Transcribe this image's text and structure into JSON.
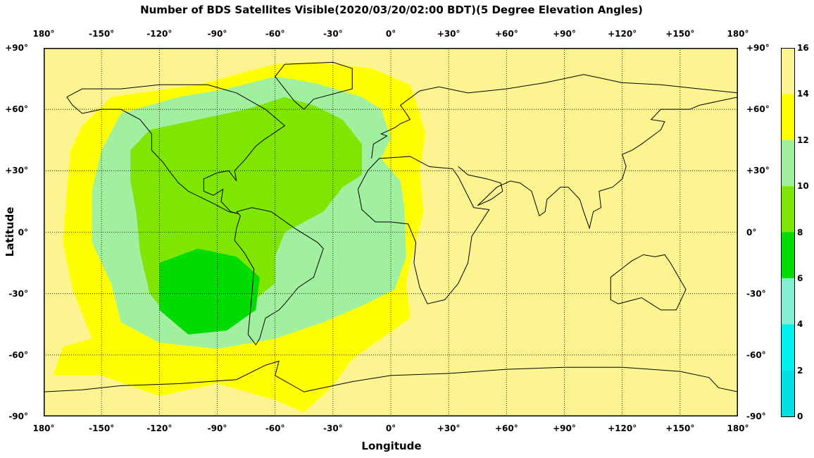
{
  "chart_data": {
    "type": "heatmap",
    "title": "Number of BDS Satellites Visible(2020/03/20/02:00 BDT)(5 Degree Elevation Angles)",
    "xlabel": "Longitude",
    "ylabel": "Latitude",
    "x_ticks": [
      "180°",
      "-150°",
      "-120°",
      "-90°",
      "-60°",
      "-30°",
      "0°",
      "+30°",
      "+60°",
      "+90°",
      "+120°",
      "+150°",
      "180°"
    ],
    "y_ticks": [
      "+90°",
      "+60°",
      "+30°",
      "0°",
      "-30°",
      "-60°",
      "-90°"
    ],
    "xlim": [
      -180,
      180
    ],
    "ylim": [
      -90,
      90
    ],
    "grid": true,
    "colorbar": {
      "ticks": [
        "16",
        "14",
        "12",
        "10",
        "8",
        "6",
        "4",
        "2",
        "0"
      ],
      "range": [
        0,
        16
      ],
      "bands": [
        {
          "min": 14,
          "max": 16,
          "color": "#fcf490"
        },
        {
          "min": 12,
          "max": 14,
          "color": "#ffff00"
        },
        {
          "min": 10,
          "max": 12,
          "color": "#a0f0a0"
        },
        {
          "min": 8,
          "max": 10,
          "color": "#7ee600"
        },
        {
          "min": 6,
          "max": 8,
          "color": "#00dc00"
        },
        {
          "min": 4,
          "max": 6,
          "color": "#80f0d0"
        },
        {
          "min": 2,
          "max": 4,
          "color": "#00f0f0"
        },
        {
          "min": 0,
          "max": 2,
          "color": "#00e0e0"
        }
      ]
    },
    "regions": [
      {
        "value": 15,
        "description": "background",
        "polygon": [
          [
            -180,
            90
          ],
          [
            180,
            90
          ],
          [
            180,
            -90
          ],
          [
            -180,
            -90
          ]
        ]
      },
      {
        "value": 13,
        "description": "outer ring",
        "polygon": [
          [
            -160,
            52
          ],
          [
            -145,
            66
          ],
          [
            -100,
            72
          ],
          [
            -60,
            82
          ],
          [
            -40,
            83
          ],
          [
            -10,
            80
          ],
          [
            10,
            72
          ],
          [
            15,
            58
          ],
          [
            18,
            48
          ],
          [
            15,
            30
          ],
          [
            17,
            10
          ],
          [
            12,
            -8
          ],
          [
            8,
            -24
          ],
          [
            10,
            -42
          ],
          [
            -5,
            -52
          ],
          [
            -20,
            -62
          ],
          [
            -30,
            -75
          ],
          [
            -45,
            -88
          ],
          [
            -60,
            -82
          ],
          [
            -90,
            -74
          ],
          [
            -120,
            -80
          ],
          [
            -150,
            -70
          ],
          [
            -175,
            -70
          ],
          [
            -170,
            -56
          ],
          [
            -155,
            -52
          ],
          [
            -165,
            -28
          ],
          [
            -170,
            -5
          ],
          [
            -168,
            20
          ],
          [
            -166,
            40
          ]
        ]
      },
      {
        "value": 11,
        "description": "10-12 zone",
        "polygon": [
          [
            -150,
            40
          ],
          [
            -140,
            58
          ],
          [
            -110,
            66
          ],
          [
            -85,
            70
          ],
          [
            -60,
            76
          ],
          [
            -40,
            73
          ],
          [
            -15,
            66
          ],
          [
            -5,
            60
          ],
          [
            0,
            46
          ],
          [
            -5,
            36
          ],
          [
            5,
            25
          ],
          [
            7,
            12
          ],
          [
            8,
            -12
          ],
          [
            2,
            -28
          ],
          [
            -15,
            -36
          ],
          [
            -35,
            -44
          ],
          [
            -60,
            -52
          ],
          [
            -90,
            -57
          ],
          [
            -120,
            -54
          ],
          [
            -140,
            -44
          ],
          [
            -145,
            -25
          ],
          [
            -155,
            -5
          ],
          [
            -155,
            20
          ],
          [
            -152,
            32
          ]
        ]
      },
      {
        "value": 9,
        "description": "8-10 zone",
        "polygon": [
          [
            -135,
            40
          ],
          [
            -125,
            50
          ],
          [
            -95,
            56
          ],
          [
            -75,
            60
          ],
          [
            -55,
            66
          ],
          [
            -40,
            62
          ],
          [
            -25,
            55
          ],
          [
            -15,
            43
          ],
          [
            -15,
            28
          ],
          [
            -25,
            22
          ],
          [
            -35,
            10
          ],
          [
            -55,
            0
          ],
          [
            -60,
            -12
          ],
          [
            -60,
            -25
          ],
          [
            -80,
            -40
          ],
          [
            -95,
            -44
          ],
          [
            -115,
            -42
          ],
          [
            -125,
            -30
          ],
          [
            -130,
            -10
          ],
          [
            -132,
            10
          ],
          [
            -135,
            25
          ]
        ]
      },
      {
        "value": 7,
        "description": "6-8 zone",
        "polygon": [
          [
            -120,
            -15
          ],
          [
            -100,
            -8
          ],
          [
            -80,
            -12
          ],
          [
            -68,
            -22
          ],
          [
            -70,
            -38
          ],
          [
            -85,
            -48
          ],
          [
            -105,
            -50
          ],
          [
            -120,
            -38
          ]
        ]
      }
    ]
  }
}
